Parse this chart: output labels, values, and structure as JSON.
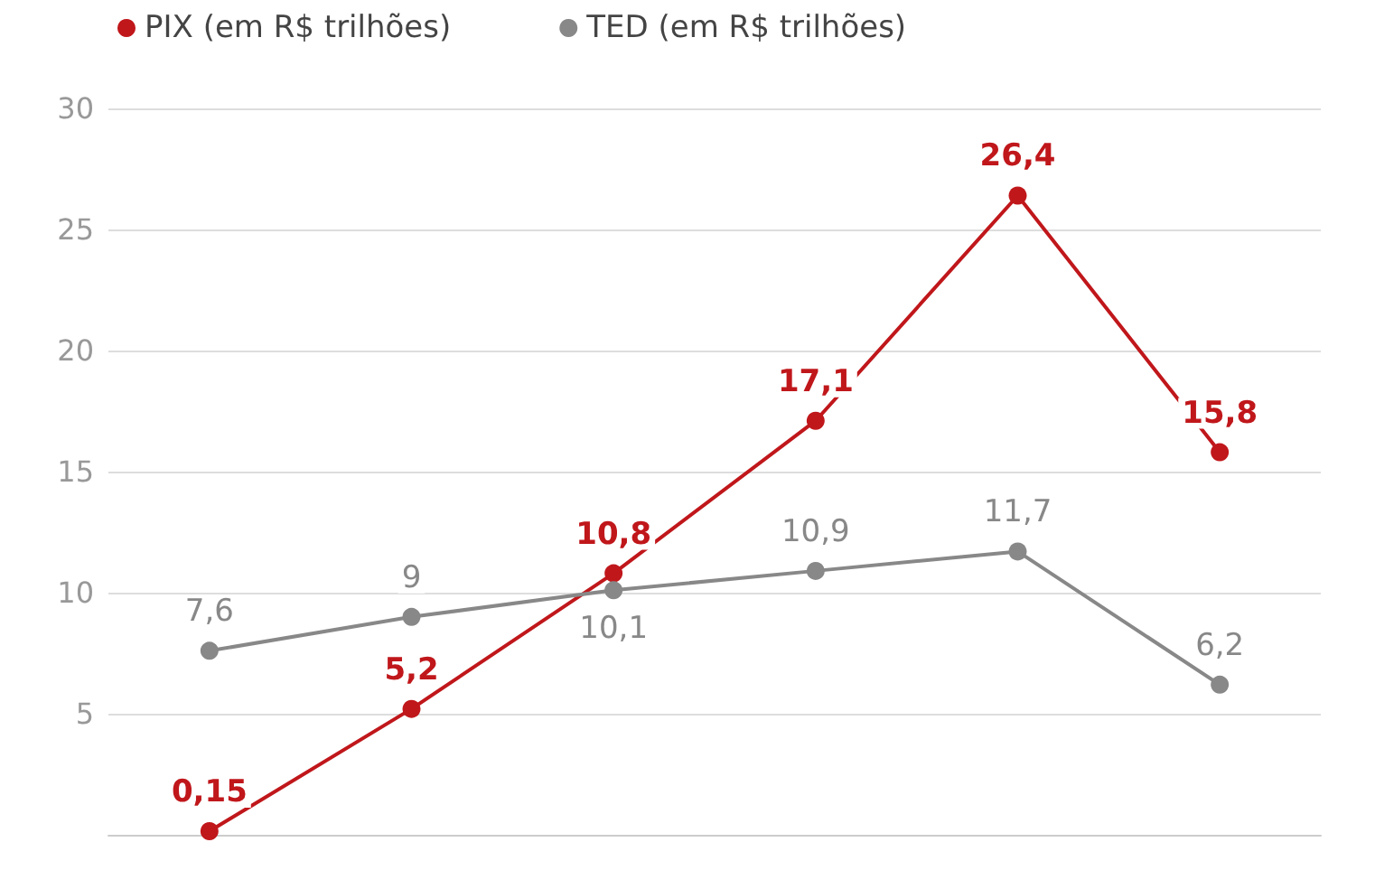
{
  "chart_data": {
    "type": "line",
    "categories": [
      null,
      null,
      null,
      null,
      null,
      null
    ],
    "series": [
      {
        "name": "PIX (em R$ trilhões)",
        "color": "#c0171b",
        "values": [
          0.15,
          5.2,
          10.8,
          17.1,
          26.4,
          15.8
        ],
        "value_labels": [
          "0,15",
          "5,2",
          "10,8",
          "17,1",
          "26,4",
          "15,8"
        ]
      },
      {
        "name": "TED (em R$ trilhões)",
        "color": "#888888",
        "values": [
          7.6,
          9,
          10.1,
          10.9,
          11.7,
          6.2
        ],
        "value_labels": [
          "7,6",
          "9",
          "10,1",
          "10,9",
          "11,7",
          "6,2"
        ]
      }
    ],
    "ylim": [
      0,
      30
    ],
    "yticks": [
      5,
      10,
      15,
      20,
      25,
      30
    ],
    "grid": "y",
    "legend": "top left",
    "marker": "circle",
    "line_style": "solid"
  }
}
